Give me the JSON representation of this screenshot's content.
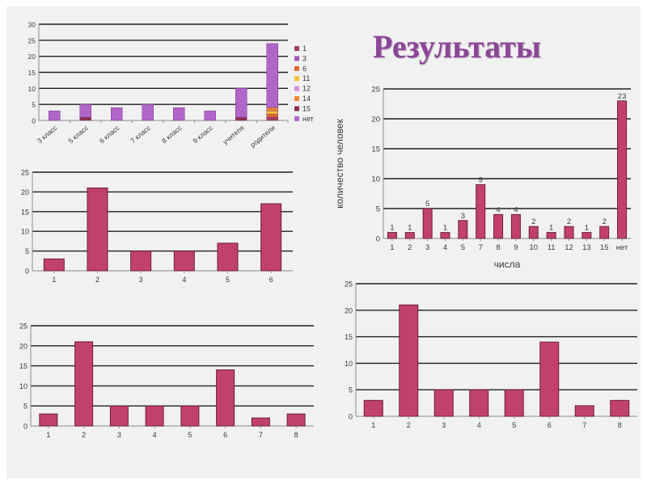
{
  "title": "Результаты",
  "colors": {
    "bar": "#c2416b",
    "bar_stroke": "#6b1f3a",
    "grid": "#202020",
    "axis": "#8c8c8c"
  },
  "chart_data": [
    {
      "id": "classes",
      "type": "bar",
      "stacked": true,
      "categories": [
        "3 класс",
        "5 класс",
        "6 класс",
        "7 класс",
        "8 класс",
        "9 класс",
        "учителя",
        "родители"
      ],
      "series": [
        {
          "name": "1",
          "color": "#a33f5c",
          "values": [
            0,
            0,
            0,
            0,
            0,
            0,
            0,
            1
          ]
        },
        {
          "name": "3",
          "color": "#9f57b8",
          "values": [
            0,
            0,
            0,
            0,
            0,
            0,
            0,
            0
          ]
        },
        {
          "name": "6",
          "color": "#e0692d",
          "values": [
            0,
            0,
            0,
            0,
            0,
            0,
            0,
            1
          ]
        },
        {
          "name": "11",
          "color": "#f5c431",
          "values": [
            0,
            0,
            0,
            0,
            0,
            0,
            0,
            1
          ]
        },
        {
          "name": "12",
          "color": "#cf8fd6",
          "values": [
            0,
            0,
            0,
            0,
            0,
            0,
            0,
            0
          ]
        },
        {
          "name": "14",
          "color": "#ef8a2d",
          "values": [
            0,
            0,
            0,
            0,
            0,
            0,
            0,
            1
          ]
        },
        {
          "name": "15",
          "color": "#8e2f4e",
          "values": [
            0,
            1,
            0,
            0,
            0,
            0,
            1,
            0
          ]
        },
        {
          "name": "нет",
          "color": "#b065c8",
          "values": [
            3,
            4,
            4,
            5,
            4,
            3,
            9,
            20
          ]
        }
      ],
      "ylim": [
        0,
        30
      ],
      "yticks": [
        0,
        5,
        10,
        15,
        20,
        25,
        30
      ],
      "legend": "right"
    },
    {
      "id": "numbers",
      "type": "bar",
      "categories": [
        "1",
        "2",
        "3",
        "4",
        "5",
        "7",
        "8",
        "9",
        "10",
        "11",
        "12",
        "13",
        "15",
        "нет"
      ],
      "values": [
        1,
        1,
        5,
        1,
        3,
        9,
        4,
        4,
        2,
        1,
        2,
        1,
        2,
        23
      ],
      "data_labels": [
        "1",
        "1",
        "5",
        "1",
        "3",
        "9",
        "4",
        "4",
        "2",
        "1",
        "2",
        "1",
        "2",
        "23"
      ],
      "ylim": [
        0,
        25
      ],
      "yticks": [
        0,
        5,
        10,
        15,
        20,
        25
      ],
      "xlabel": "числа",
      "ylabel": "количество человек"
    },
    {
      "id": "q6",
      "type": "bar",
      "categories": [
        "1",
        "2",
        "3",
        "4",
        "5",
        "6"
      ],
      "values": [
        3,
        21,
        5,
        5,
        7,
        17
      ],
      "ylim": [
        0,
        25
      ],
      "yticks": [
        0,
        5,
        10,
        15,
        20,
        25
      ]
    },
    {
      "id": "q8a",
      "type": "bar",
      "categories": [
        "1",
        "2",
        "3",
        "4",
        "5",
        "6",
        "7",
        "8"
      ],
      "values": [
        3,
        21,
        5,
        5,
        5,
        14,
        2,
        3
      ],
      "ylim": [
        0,
        25
      ],
      "yticks": [
        0,
        5,
        10,
        15,
        20,
        25
      ]
    },
    {
      "id": "q8b",
      "type": "bar",
      "categories": [
        "1",
        "2",
        "3",
        "4",
        "5",
        "6",
        "7",
        "8"
      ],
      "values": [
        3,
        21,
        5,
        5,
        5,
        14,
        2,
        3
      ],
      "ylim": [
        0,
        25
      ],
      "yticks": [
        0,
        5,
        10,
        15,
        20,
        25
      ]
    }
  ]
}
